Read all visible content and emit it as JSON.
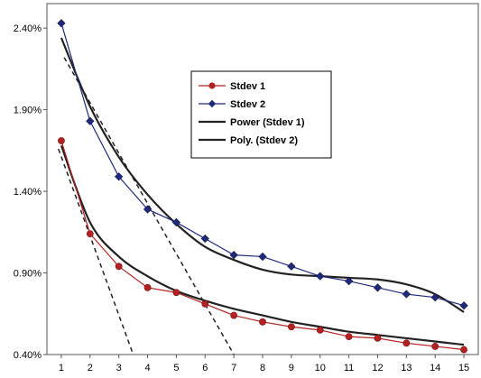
{
  "chart_data": {
    "type": "line",
    "x": [
      1,
      2,
      3,
      4,
      5,
      6,
      7,
      8,
      9,
      10,
      11,
      12,
      13,
      14,
      15
    ],
    "ylim": [
      0.004,
      0.0255
    ],
    "xlim": [
      0.5,
      15.5
    ],
    "y_ticks": [
      {
        "value": 0.004,
        "label": "0.40%"
      },
      {
        "value": 0.009,
        "label": "0.90%"
      },
      {
        "value": 0.014,
        "label": "1.40%"
      },
      {
        "value": 0.019,
        "label": "1.90%"
      },
      {
        "value": 0.024,
        "label": "2.40%"
      }
    ],
    "x_ticks": [
      "1",
      "2",
      "3",
      "4",
      "5",
      "6",
      "7",
      "8",
      "9",
      "10",
      "11",
      "12",
      "13",
      "14",
      "15"
    ],
    "grid": false,
    "legend_position": "upper-center",
    "series": [
      {
        "name": "Stdev 1",
        "color": "#b22222",
        "marker": "circle",
        "values": [
          0.0171,
          0.0114,
          0.0094,
          0.0081,
          0.0078,
          0.0071,
          0.0064,
          0.006,
          0.0057,
          0.0055,
          0.0051,
          0.005,
          0.0047,
          0.0045,
          0.0043
        ]
      },
      {
        "name": "Stdev 2",
        "color": "#1f2a7a",
        "marker": "diamond",
        "values": [
          0.0243,
          0.0183,
          0.0149,
          0.0129,
          0.0121,
          0.0111,
          0.0101,
          0.01,
          0.0094,
          0.0088,
          0.0085,
          0.0081,
          0.0077,
          0.0075,
          0.007
        ]
      },
      {
        "name": "Power (Stdev 1)",
        "color": "#222222",
        "style": "trendline",
        "values": [
          0.0168,
          0.0121,
          0.01,
          0.0088,
          0.0079,
          0.0073,
          0.0068,
          0.0064,
          0.006,
          0.0057,
          0.0054,
          0.0052,
          0.005,
          0.0048,
          0.0046
        ]
      },
      {
        "name": "Poly. (Stdev 2)",
        "color": "#222222",
        "style": "trendline",
        "values": [
          0.0234,
          0.0192,
          0.0161,
          0.0138,
          0.012,
          0.0106,
          0.0098,
          0.0092,
          0.0089,
          0.0088,
          0.0087,
          0.0086,
          0.0083,
          0.0077,
          0.0066
        ]
      }
    ],
    "dashed_lines": [
      {
        "color": "#222222",
        "x": [
          0.9,
          3.5
        ],
        "y": [
          0.0166,
          0.004
        ]
      },
      {
        "color": "#222222",
        "x": [
          1.1,
          7.0
        ],
        "y": [
          0.0222,
          0.004
        ]
      }
    ]
  }
}
